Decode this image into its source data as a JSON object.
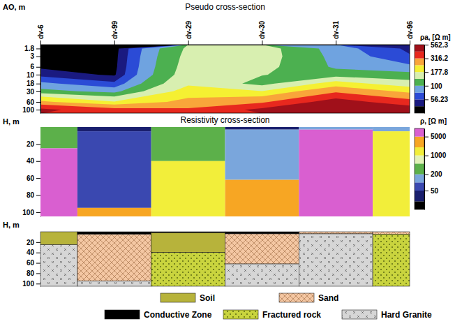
{
  "chart_data": [
    {
      "type": "contour",
      "title": "Pseudo cross-section",
      "y_label": "AO, m",
      "categories": [
        "dv-6",
        "dv-99",
        "dv-29",
        "dv-30",
        "dv-31",
        "dv-96"
      ],
      "y": [
        1.8,
        3,
        6,
        10,
        18,
        30,
        60,
        100
      ],
      "z": [
        [
          35,
          36,
          140,
          150,
          85,
          52
        ],
        [
          36,
          37,
          145,
          150,
          90,
          58
        ],
        [
          40,
          38,
          150,
          145,
          95,
          80
        ],
        [
          50,
          40,
          155,
          135,
          115,
          110
        ],
        [
          80,
          60,
          170,
          120,
          200,
          150
        ],
        [
          110,
          90,
          200,
          180,
          300,
          220
        ],
        [
          250,
          180,
          260,
          300,
          480,
          350
        ],
        [
          450,
          350,
          330,
          450,
          600,
          500
        ]
      ],
      "ylim": [
        1.4,
        125
      ],
      "yticks": [
        1.8,
        3,
        6,
        10,
        18,
        30,
        60,
        100
      ],
      "log": "y",
      "colorbar": {
        "title": "ρa, [Ω m]",
        "range": [
          31.62,
          562.3
        ],
        "ticks": [
          56.23,
          100,
          177.8,
          316.2,
          562.3
        ],
        "levels": [
          31.62,
          42.17,
          56.23,
          74.99,
          100,
          133.4,
          177.8,
          237.1,
          316.2,
          421.7,
          562.3
        ],
        "colors": [
          "#000000",
          "#1a1a80",
          "#2b4bd6",
          "#6fa3e0",
          "#4cb050",
          "#d8efb0",
          "#f5f032",
          "#f9a53a",
          "#e8281e",
          "#a0101a"
        ]
      }
    },
    {
      "type": "section",
      "title": "Resistivity cross-section",
      "y_label": "H, m",
      "ylim": [
        0,
        105
      ],
      "yticks": [
        20,
        40,
        60,
        80,
        100
      ],
      "columns": [
        {
          "layers": [
            {
              "top": 0,
              "bottom": 25,
              "value": 300
            },
            {
              "top": 25,
              "bottom": 105,
              "value": 7000
            }
          ]
        },
        {
          "layers": [
            {
              "top": 0,
              "bottom": 5,
              "value": 30
            },
            {
              "top": 5,
              "bottom": 95,
              "value": 70
            },
            {
              "top": 95,
              "bottom": 105,
              "value": 3000
            }
          ]
        },
        {
          "layers": [
            {
              "top": 0,
              "bottom": 40,
              "value": 300
            },
            {
              "top": 40,
              "bottom": 105,
              "value": 1500
            }
          ]
        },
        {
          "layers": [
            {
              "top": 0,
              "bottom": 3,
              "value": 30
            },
            {
              "top": 3,
              "bottom": 62,
              "value": 150
            },
            {
              "top": 62,
              "bottom": 105,
              "value": 3000
            }
          ]
        },
        {
          "layers": [
            {
              "top": 0,
              "bottom": 3,
              "value": 150
            },
            {
              "top": 3,
              "bottom": 105,
              "value": 7000
            }
          ]
        },
        {
          "layers": [
            {
              "top": 0,
              "bottom": 5,
              "value": 150
            },
            {
              "top": 5,
              "bottom": 105,
              "value": 1500
            }
          ]
        }
      ],
      "colorbar": {
        "title": "ρ, [Ω m]",
        "range": [
          10,
          10000
        ],
        "ticks": [
          50,
          200,
          1000,
          5000
        ],
        "levels": [
          10,
          20,
          50,
          100,
          200,
          500,
          1000,
          2000,
          5000,
          10000
        ],
        "colors": [
          "#000000",
          "#1a1f6e",
          "#3a48b0",
          "#7aa6dc",
          "#5cb04a",
          "#e3f2b8",
          "#f2ee3a",
          "#f7a623",
          "#d95fd0"
        ]
      }
    },
    {
      "type": "section",
      "y_label": "H, m",
      "ylim": [
        0,
        105
      ],
      "yticks": [
        20,
        40,
        60,
        80,
        100
      ],
      "legend": "bottom",
      "series": [
        {
          "name": "Soil",
          "color": "#b7b33b"
        },
        {
          "name": "Sand",
          "color": "#f4c7a3"
        },
        {
          "name": "Conductive Zone",
          "color": "#000000"
        },
        {
          "name": "Fractured rock",
          "color": "#c9d43e"
        },
        {
          "name": "Hard Granite",
          "color": "#d6d6d6"
        }
      ],
      "columns": [
        {
          "layers": [
            {
              "top": 0,
              "bottom": 25,
              "lithology": "Soil"
            },
            {
              "top": 25,
              "bottom": 105,
              "lithology": "Hard Granite"
            }
          ]
        },
        {
          "layers": [
            {
              "top": 0,
              "bottom": 5,
              "lithology": "Conductive Zone"
            },
            {
              "top": 5,
              "bottom": 95,
              "lithology": "Sand"
            },
            {
              "top": 95,
              "bottom": 105,
              "lithology": "Hard Granite"
            }
          ]
        },
        {
          "layers": [
            {
              "top": 0,
              "bottom": 2,
              "lithology": "Conductive Zone"
            },
            {
              "top": 2,
              "bottom": 40,
              "lithology": "Soil"
            },
            {
              "top": 40,
              "bottom": 105,
              "lithology": "Fractured rock"
            }
          ]
        },
        {
          "layers": [
            {
              "top": 0,
              "bottom": 4,
              "lithology": "Conductive Zone"
            },
            {
              "top": 4,
              "bottom": 62,
              "lithology": "Sand"
            },
            {
              "top": 62,
              "bottom": 105,
              "lithology": "Hard Granite"
            }
          ]
        },
        {
          "layers": [
            {
              "top": 0,
              "bottom": 4,
              "lithology": "Sand"
            },
            {
              "top": 4,
              "bottom": 105,
              "lithology": "Hard Granite"
            }
          ]
        },
        {
          "layers": [
            {
              "top": 0,
              "bottom": 5,
              "lithology": "Sand"
            },
            {
              "top": 5,
              "bottom": 105,
              "lithology": "Fractured rock"
            }
          ]
        }
      ]
    }
  ]
}
